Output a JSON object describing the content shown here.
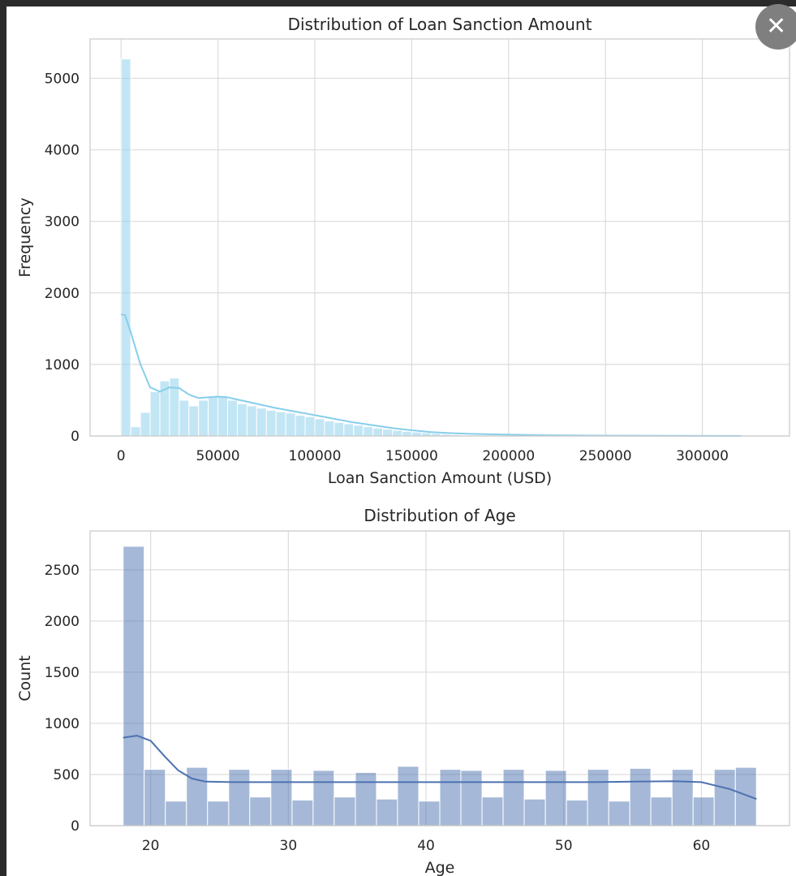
{
  "close_button": {
    "icon": "close-icon",
    "glyph": "✕"
  },
  "chart_data": [
    {
      "type": "bar",
      "chart_kind": "histogram-with-kde",
      "title": "Distribution of Loan Sanction Amount",
      "xlabel": "Loan Sanction Amount (USD)",
      "ylabel": "Frequency",
      "bin_width": 5000,
      "xlim": [
        -16000,
        345000
      ],
      "ylim": [
        0,
        5550
      ],
      "xticks": [
        0,
        50000,
        100000,
        150000,
        200000,
        250000,
        300000
      ],
      "yticks": [
        0,
        1000,
        2000,
        3000,
        4000,
        5000
      ],
      "grid": true,
      "color": "#87ceeb",
      "bins": [
        {
          "x0": 0,
          "x1": 5000,
          "count": 5270
        },
        {
          "x0": 5000,
          "x1": 10000,
          "count": 130
        },
        {
          "x0": 10000,
          "x1": 15000,
          "count": 330
        },
        {
          "x0": 15000,
          "x1": 20000,
          "count": 620
        },
        {
          "x0": 20000,
          "x1": 25000,
          "count": 770
        },
        {
          "x0": 25000,
          "x1": 30000,
          "count": 810
        },
        {
          "x0": 30000,
          "x1": 35000,
          "count": 500
        },
        {
          "x0": 35000,
          "x1": 40000,
          "count": 420
        },
        {
          "x0": 40000,
          "x1": 45000,
          "count": 500
        },
        {
          "x0": 45000,
          "x1": 50000,
          "count": 550
        },
        {
          "x0": 50000,
          "x1": 55000,
          "count": 545
        },
        {
          "x0": 55000,
          "x1": 60000,
          "count": 500
        },
        {
          "x0": 60000,
          "x1": 65000,
          "count": 450
        },
        {
          "x0": 65000,
          "x1": 70000,
          "count": 420
        },
        {
          "x0": 70000,
          "x1": 75000,
          "count": 390
        },
        {
          "x0": 75000,
          "x1": 80000,
          "count": 360
        },
        {
          "x0": 80000,
          "x1": 85000,
          "count": 340
        },
        {
          "x0": 85000,
          "x1": 90000,
          "count": 320
        },
        {
          "x0": 90000,
          "x1": 95000,
          "count": 290
        },
        {
          "x0": 95000,
          "x1": 100000,
          "count": 270
        },
        {
          "x0": 100000,
          "x1": 105000,
          "count": 240
        },
        {
          "x0": 105000,
          "x1": 110000,
          "count": 210
        },
        {
          "x0": 110000,
          "x1": 115000,
          "count": 190
        },
        {
          "x0": 115000,
          "x1": 120000,
          "count": 170
        },
        {
          "x0": 120000,
          "x1": 125000,
          "count": 150
        },
        {
          "x0": 125000,
          "x1": 130000,
          "count": 130
        },
        {
          "x0": 130000,
          "x1": 135000,
          "count": 110
        },
        {
          "x0": 135000,
          "x1": 140000,
          "count": 95
        },
        {
          "x0": 140000,
          "x1": 145000,
          "count": 80
        },
        {
          "x0": 145000,
          "x1": 150000,
          "count": 65
        },
        {
          "x0": 150000,
          "x1": 155000,
          "count": 55
        },
        {
          "x0": 155000,
          "x1": 160000,
          "count": 45
        },
        {
          "x0": 160000,
          "x1": 165000,
          "count": 35
        },
        {
          "x0": 165000,
          "x1": 170000,
          "count": 25
        },
        {
          "x0": 170000,
          "x1": 175000,
          "count": 18
        },
        {
          "x0": 175000,
          "x1": 180000,
          "count": 12
        },
        {
          "x0": 180000,
          "x1": 185000,
          "count": 8
        },
        {
          "x0": 185000,
          "x1": 190000,
          "count": 6
        },
        {
          "x0": 190000,
          "x1": 195000,
          "count": 5
        },
        {
          "x0": 195000,
          "x1": 200000,
          "count": 4
        }
      ],
      "kde": {
        "x": [
          0,
          2000,
          5000,
          10000,
          15000,
          20000,
          25000,
          30000,
          35000,
          40000,
          45000,
          50000,
          55000,
          60000,
          70000,
          80000,
          90000,
          100000,
          110000,
          120000,
          130000,
          140000,
          150000,
          160000,
          170000,
          180000,
          200000,
          220000,
          250000,
          280000,
          320000
        ],
        "y": [
          1700,
          1690,
          1450,
          1000,
          680,
          620,
          680,
          670,
          580,
          530,
          540,
          550,
          540,
          510,
          450,
          390,
          340,
          290,
          240,
          190,
          150,
          110,
          80,
          55,
          40,
          30,
          18,
          10,
          4,
          2,
          1
        ]
      }
    },
    {
      "type": "bar",
      "chart_kind": "histogram-with-kde",
      "title": "Distribution of Age",
      "xlabel": "Age",
      "ylabel": "Count",
      "xlim": [
        15.6,
        66.4
      ],
      "ylim": [
        0,
        2880
      ],
      "xticks": [
        20,
        30,
        40,
        50,
        60
      ],
      "yticks": [
        0,
        500,
        1000,
        1500,
        2000,
        2500
      ],
      "grid": true,
      "color": "#4c72b0",
      "bins": [
        {
          "x0": 18.0,
          "x1": 19.53,
          "count": 2730
        },
        {
          "x0": 19.53,
          "x1": 21.07,
          "count": 550
        },
        {
          "x0": 21.07,
          "x1": 22.6,
          "count": 240
        },
        {
          "x0": 22.6,
          "x1": 24.13,
          "count": 570
        },
        {
          "x0": 24.13,
          "x1": 25.67,
          "count": 240
        },
        {
          "x0": 25.67,
          "x1": 27.2,
          "count": 550
        },
        {
          "x0": 27.2,
          "x1": 28.73,
          "count": 280
        },
        {
          "x0": 28.73,
          "x1": 30.27,
          "count": 550
        },
        {
          "x0": 30.27,
          "x1": 31.8,
          "count": 250
        },
        {
          "x0": 31.8,
          "x1": 33.33,
          "count": 540
        },
        {
          "x0": 33.33,
          "x1": 34.87,
          "count": 280
        },
        {
          "x0": 34.87,
          "x1": 36.4,
          "count": 520
        },
        {
          "x0": 36.4,
          "x1": 37.93,
          "count": 260
        },
        {
          "x0": 37.93,
          "x1": 39.47,
          "count": 580
        },
        {
          "x0": 39.47,
          "x1": 41.0,
          "count": 240
        },
        {
          "x0": 41.0,
          "x1": 42.53,
          "count": 550
        },
        {
          "x0": 42.53,
          "x1": 44.07,
          "count": 540
        },
        {
          "x0": 44.07,
          "x1": 45.6,
          "count": 280
        },
        {
          "x0": 45.6,
          "x1": 47.13,
          "count": 550
        },
        {
          "x0": 47.13,
          "x1": 48.67,
          "count": 260
        },
        {
          "x0": 48.67,
          "x1": 50.2,
          "count": 540
        },
        {
          "x0": 50.2,
          "x1": 51.73,
          "count": 250
        },
        {
          "x0": 51.73,
          "x1": 53.27,
          "count": 550
        },
        {
          "x0": 53.27,
          "x1": 54.8,
          "count": 240
        },
        {
          "x0": 54.8,
          "x1": 56.33,
          "count": 560
        },
        {
          "x0": 56.33,
          "x1": 57.87,
          "count": 280
        },
        {
          "x0": 57.87,
          "x1": 59.4,
          "count": 550
        },
        {
          "x0": 59.4,
          "x1": 60.93,
          "count": 280
        },
        {
          "x0": 60.93,
          "x1": 62.47,
          "count": 550
        },
        {
          "x0": 62.47,
          "x1": 64.0,
          "count": 570
        }
      ],
      "kde": {
        "x": [
          18,
          19,
          20,
          21,
          22,
          23,
          24,
          26,
          30,
          35,
          40,
          45,
          50,
          52,
          55,
          58,
          60,
          62,
          64
        ],
        "y": [
          860,
          880,
          830,
          680,
          540,
          460,
          430,
          425,
          425,
          425,
          425,
          425,
          425,
          425,
          430,
          435,
          425,
          360,
          260
        ]
      }
    }
  ]
}
